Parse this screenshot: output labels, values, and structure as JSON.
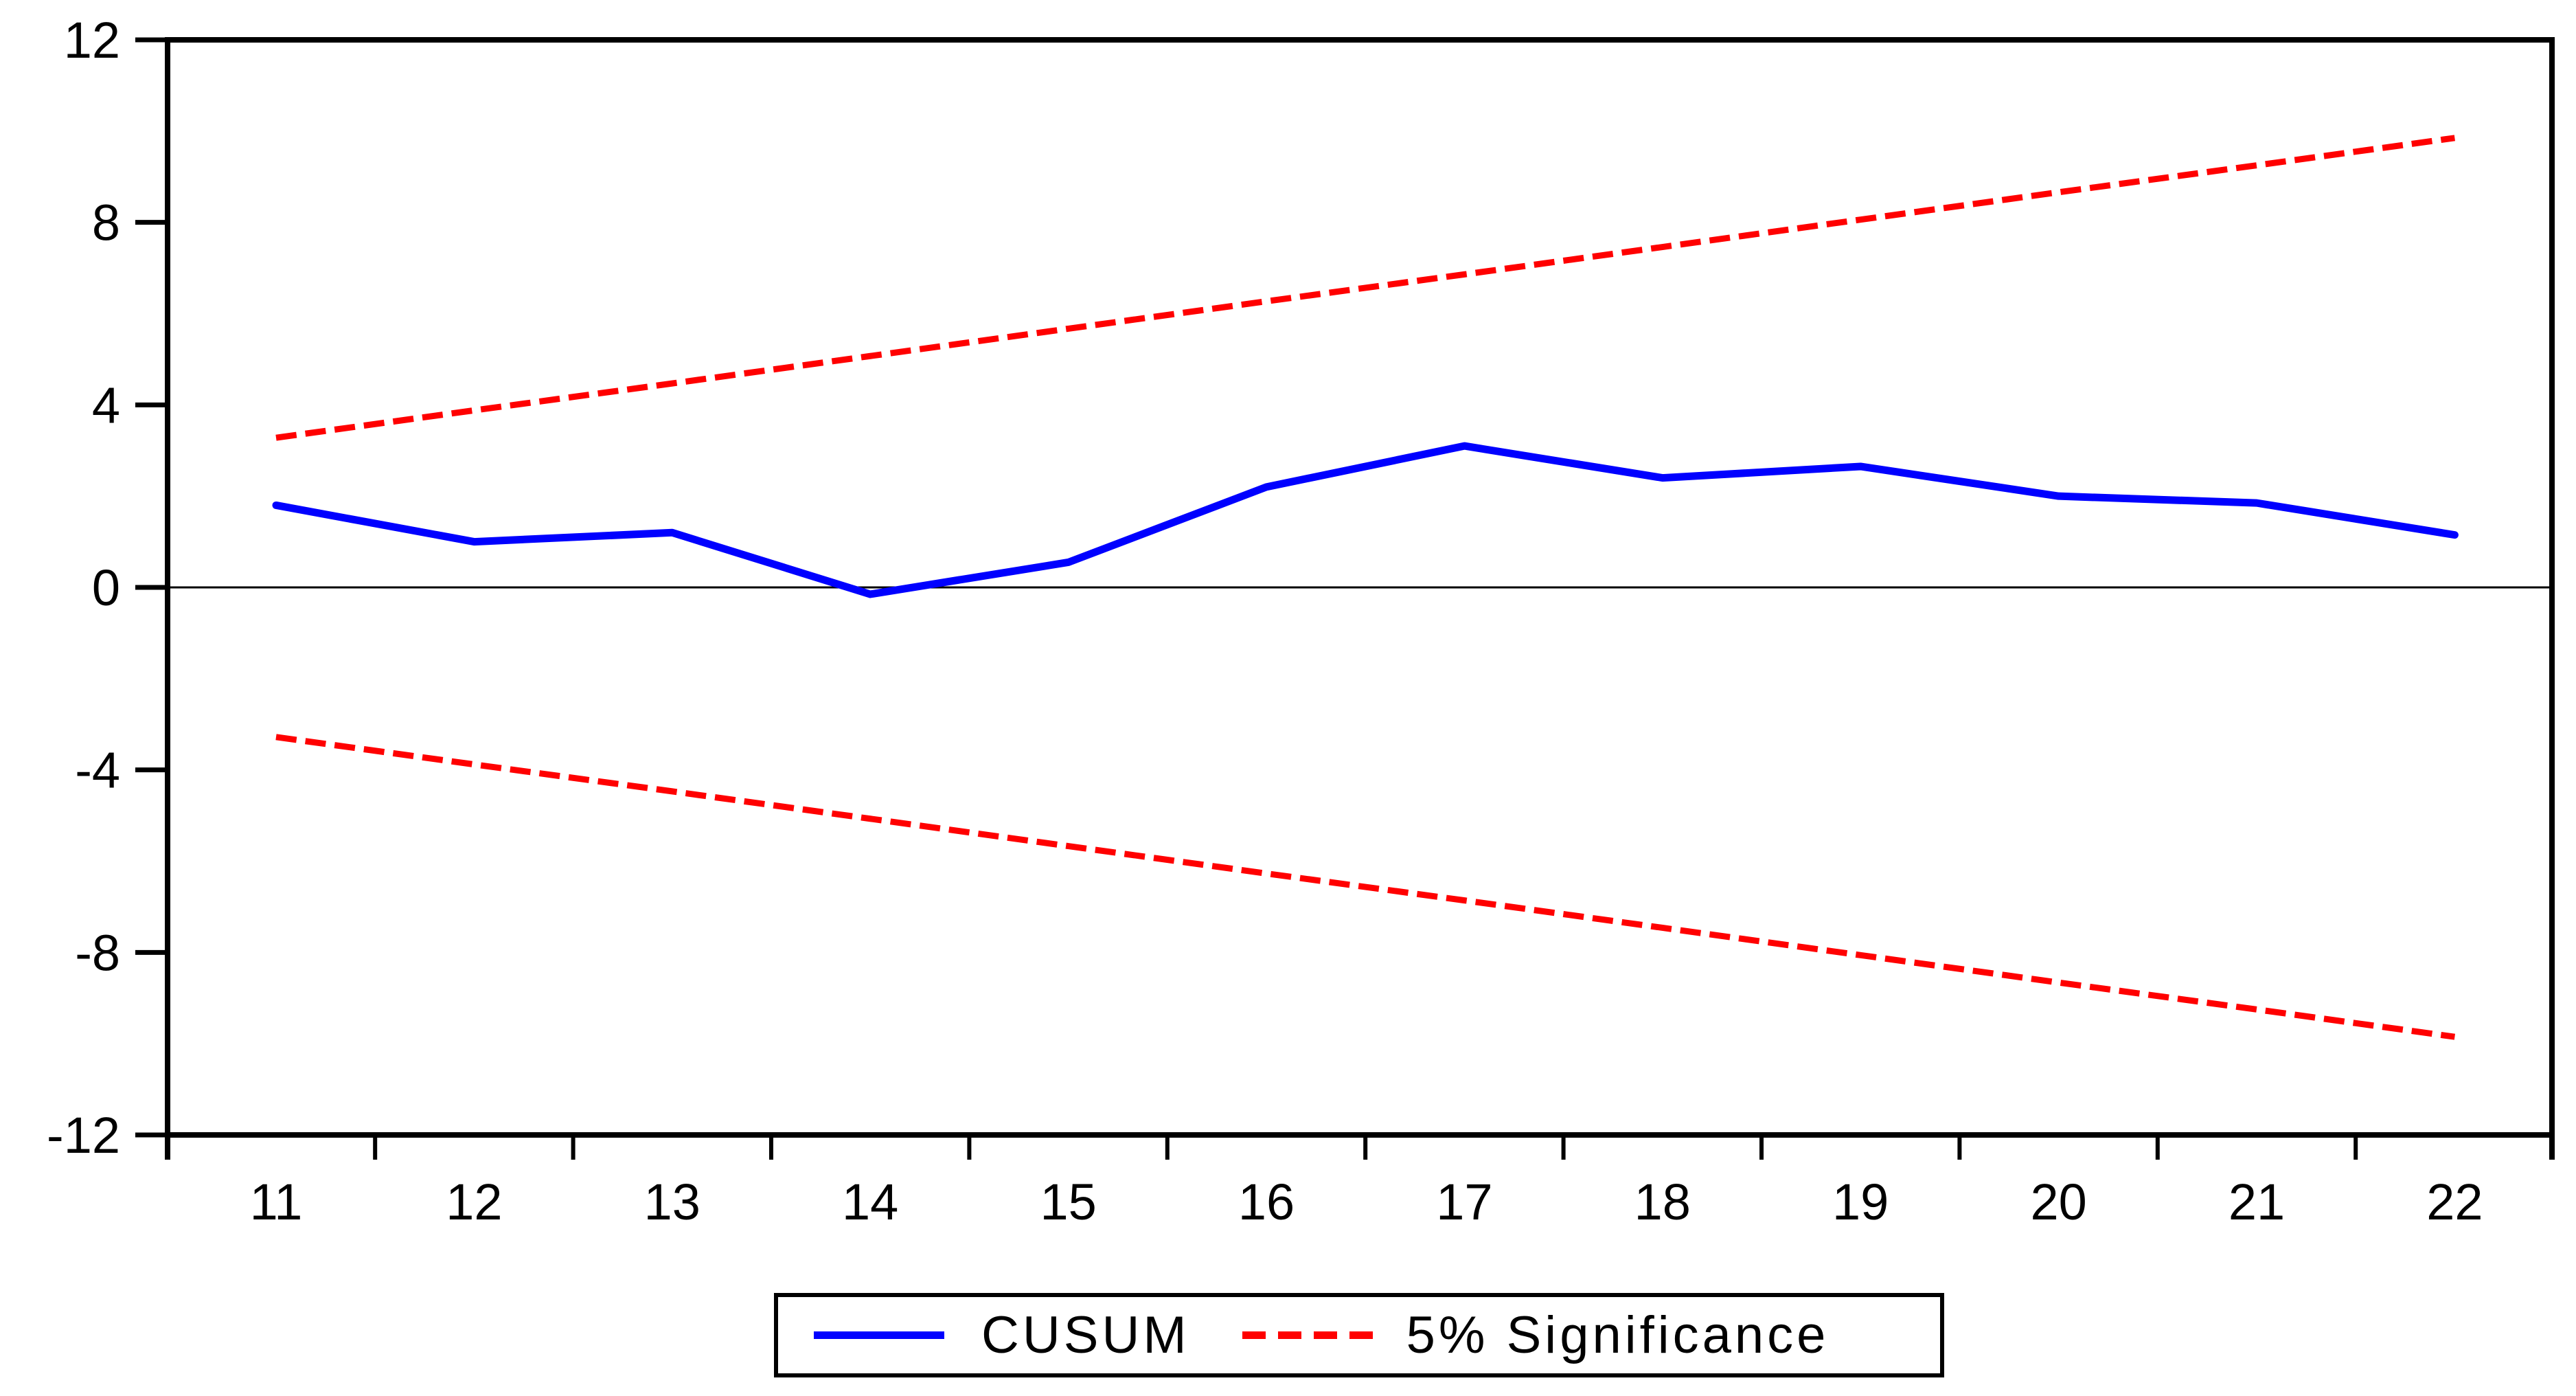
{
  "figure": {
    "background_color": "#FFFFFF",
    "frame_color": "#000000"
  },
  "legend": {
    "items": [
      {
        "label": "CUSUM",
        "color": "#0000FF",
        "style": "solid"
      },
      {
        "label": "5% Significance",
        "color": "#FF0000",
        "style": "dashed"
      }
    ]
  },
  "chart_data": {
    "type": "line",
    "title": "",
    "xlabel": "",
    "ylabel": "",
    "x": [
      11,
      12,
      13,
      14,
      15,
      16,
      17,
      18,
      19,
      20,
      21,
      22
    ],
    "series": [
      {
        "name": "CUSUM",
        "color": "#0000FF",
        "style": "solid",
        "values": [
          1.8,
          1.0,
          1.2,
          -0.15,
          0.55,
          2.2,
          3.1,
          2.4,
          2.65,
          2.0,
          1.85,
          1.15
        ]
      },
      {
        "name": "5% Significance (upper)",
        "color": "#FF0000",
        "style": "dashed",
        "values": [
          3.28,
          3.88,
          4.47,
          5.07,
          5.67,
          6.27,
          6.86,
          7.46,
          8.06,
          8.66,
          9.25,
          9.85
        ]
      },
      {
        "name": "5% Significance (lower)",
        "color": "#FF0000",
        "style": "dashed",
        "values": [
          -3.28,
          -3.88,
          -4.47,
          -5.07,
          -5.67,
          -6.27,
          -6.86,
          -7.46,
          -8.06,
          -8.66,
          -9.25,
          -9.85
        ]
      }
    ],
    "yticks": [
      12,
      8,
      4,
      0,
      -4,
      -8,
      -12
    ],
    "xticks": [
      11,
      12,
      13,
      14,
      15,
      16,
      17,
      18,
      19,
      20,
      21,
      22
    ],
    "ylim": [
      -12,
      12
    ],
    "zero_line": true,
    "grid": false,
    "legend_position": "bottom"
  }
}
